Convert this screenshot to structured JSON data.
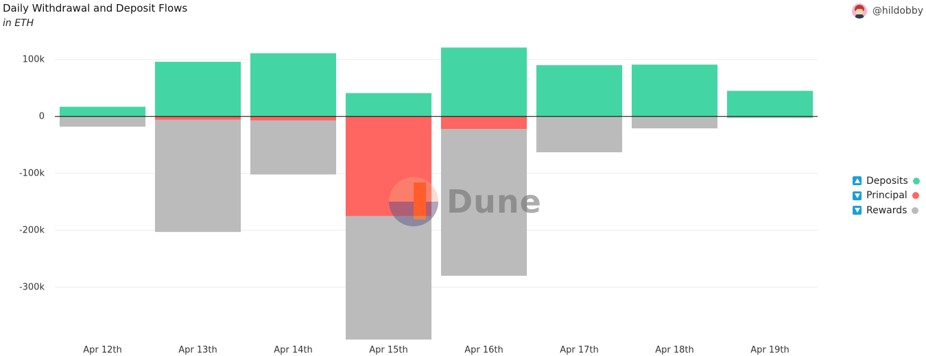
{
  "header": {
    "title": "Daily Withdrawal and Deposit Flows",
    "subtitle": "in ETH",
    "author": "@hildobby"
  },
  "watermark": {
    "text": "Dune"
  },
  "legend": {
    "items": [
      {
        "label": "Deposits",
        "color": "#43d6a4",
        "toggle": "up"
      },
      {
        "label": "Principal",
        "color": "#ff6561",
        "toggle": "down"
      },
      {
        "label": "Rewards",
        "color": "#bbbbbb",
        "toggle": "down"
      }
    ]
  },
  "chart_data": {
    "type": "bar",
    "stacked": true,
    "title": "Daily Withdrawal and Deposit Flows",
    "subtitle": "in ETH",
    "xlabel": "",
    "ylabel": "",
    "categories": [
      "Apr 12th",
      "Apr 13th",
      "Apr 14th",
      "Apr 15th",
      "Apr 16th",
      "Apr 17th",
      "Apr 18th",
      "Apr 19th"
    ],
    "yticks": [
      100000,
      0,
      -100000,
      -200000,
      -300000
    ],
    "ytick_labels": [
      "100k",
      "0",
      "-100k",
      "-200k",
      "-300k"
    ],
    "ylim": [
      -392000,
      125000
    ],
    "grid": true,
    "legend_position": "right",
    "series": [
      {
        "name": "Deposits",
        "color": "#43d6a4",
        "values": [
          17000,
          96000,
          111000,
          41000,
          121000,
          90000,
          91000,
          45000
        ]
      },
      {
        "name": "Principal",
        "color": "#ff6561",
        "values": [
          0,
          -6000,
          -7000,
          -175000,
          -22000,
          0,
          0,
          0
        ]
      },
      {
        "name": "Rewards",
        "color": "#bbbbbb",
        "values": [
          -18000,
          -197000,
          -95000,
          -217000,
          -258000,
          -63000,
          -21000,
          -3000
        ]
      }
    ]
  }
}
